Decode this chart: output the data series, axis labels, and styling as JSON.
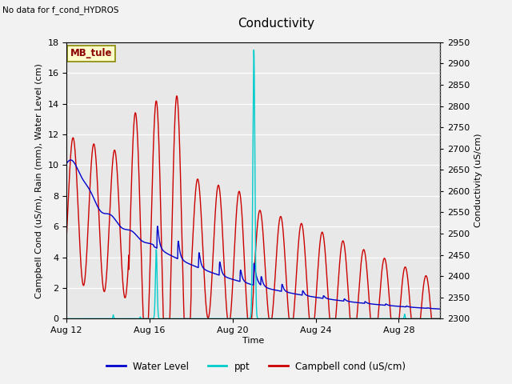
{
  "title": "Conductivity",
  "top_left_text": "No data for f_cond_HYDROS",
  "ylabel_left": "Campbell Cond (uS/m), Rain (mm), Water Level (cm)",
  "ylabel_right": "Conductivity (uS/cm)",
  "xlabel": "Time",
  "ylim_left": [
    0,
    18
  ],
  "ylim_right": [
    2300,
    2950
  ],
  "bg_color": "#f2f2f2",
  "plot_bg_color": "#e8e8e8",
  "legend_label_box": "MB_tule",
  "legend_items": [
    "Water Level",
    "ppt",
    "Campbell cond (uS/cm)"
  ],
  "legend_colors": [
    "#0000cc",
    "#00cccc",
    "#cc0000"
  ],
  "grid_color": "#ffffff",
  "title_fontsize": 11,
  "label_fontsize": 8,
  "tick_fontsize": 8,
  "right_tick_dotted": true,
  "xtick_labels": [
    "Aug 12",
    "Aug 16",
    "Aug 20",
    "Aug 24",
    "Aug 28"
  ],
  "xtick_positions": [
    12,
    16,
    20,
    24,
    28
  ],
  "yticks_left": [
    0,
    2,
    4,
    6,
    8,
    10,
    12,
    14,
    16,
    18
  ],
  "yticks_right": [
    2300,
    2350,
    2400,
    2450,
    2500,
    2550,
    2600,
    2650,
    2700,
    2750,
    2800,
    2850,
    2900,
    2950
  ],
  "xlim": [
    12,
    30
  ]
}
